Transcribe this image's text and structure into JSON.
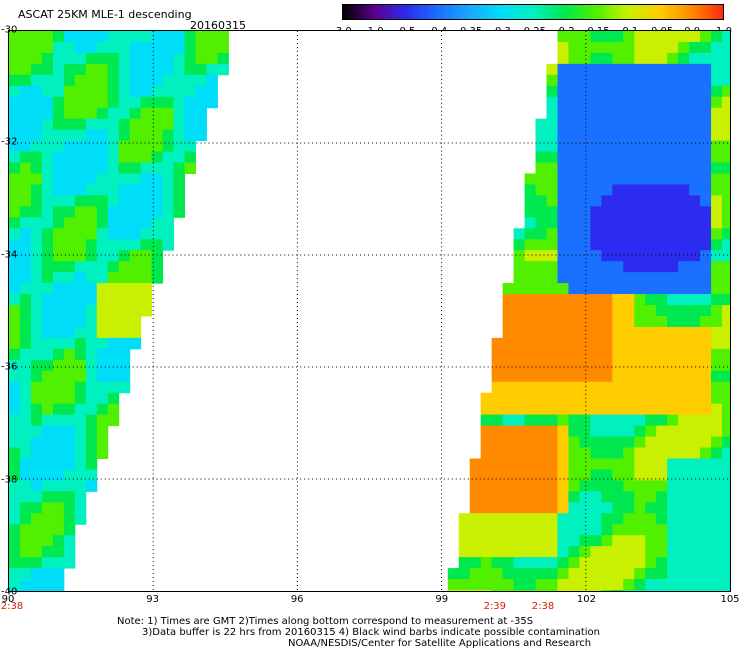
{
  "header": {
    "title": "ASCAT 25KM MLE-1 descending",
    "date": "20160315"
  },
  "colorbar": {
    "labels": [
      "-3.0",
      "-1.0",
      "-0.5",
      "-0.4",
      "-0.35",
      "-0.3",
      "-0.25",
      "-0.2",
      "-0.15",
      "-0.1",
      "-0.05",
      "0.0",
      "1.0"
    ],
    "colors": [
      "#000000",
      "#5a0090",
      "#2c2cf0",
      "#1a70ff",
      "#19a8ff",
      "#00ddf8",
      "#00f0c0",
      "#00e850",
      "#50f000",
      "#c8f000",
      "#ffcc00",
      "#ff8a00",
      "#ff2a10"
    ]
  },
  "map": {
    "lon_labels": [
      "90",
      "93",
      "96",
      "99",
      "102",
      "105"
    ],
    "lat_labels": [
      "-30",
      "-32",
      "-34",
      "-36",
      "-38",
      "-40"
    ],
    "lon_range": [
      90,
      105
    ],
    "lat_range": [
      -30,
      -40
    ],
    "time_labels": [
      {
        "text": "2:38",
        "lon": 90
      },
      {
        "text": "2:39",
        "lon": 100.1
      },
      {
        "text": "2:38",
        "lon": 101.1
      }
    ]
  },
  "notes": {
    "line1": "Note: 1) Times are GMT 2)Times along bottom correspond to measurement at -35S",
    "line2": "3)Data buffer is 22 hrs from 20160315 4) Black wind barbs indicate possible contamination",
    "line3": "NOAA/NESDIS/Center for Satellite Applications and Research"
  }
}
